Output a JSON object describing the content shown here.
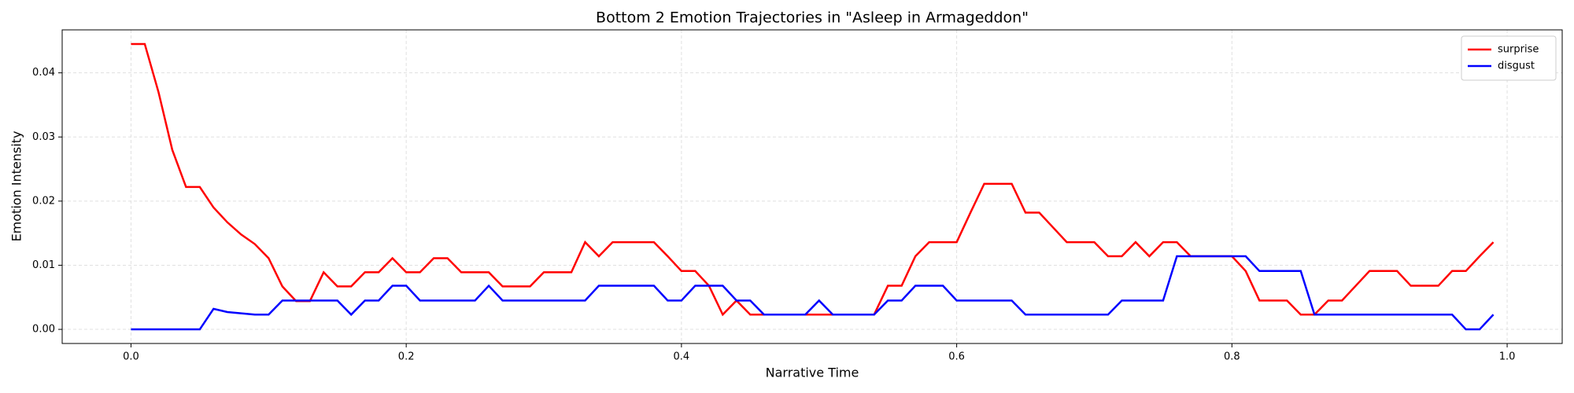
{
  "chart_data": {
    "type": "line",
    "title": "Bottom 2 Emotion Trajectories in \"Asleep in Armageddon\"",
    "x_label": "Narrative Time",
    "y_label": "Emotion Intensity",
    "x": [
      0,
      0.01,
      0.02,
      0.03,
      0.04,
      0.05,
      0.06,
      0.07,
      0.08,
      0.09,
      0.1,
      0.11,
      0.12,
      0.13,
      0.14,
      0.15,
      0.16,
      0.17,
      0.18,
      0.19,
      0.2,
      0.21,
      0.22,
      0.23,
      0.24,
      0.25,
      0.26,
      0.27,
      0.28,
      0.29,
      0.3,
      0.31,
      0.32,
      0.33,
      0.34,
      0.35,
      0.36,
      0.37,
      0.38,
      0.39,
      0.4,
      0.41,
      0.42,
      0.43,
      0.44,
      0.45,
      0.46,
      0.47,
      0.48,
      0.49,
      0.5,
      0.51,
      0.52,
      0.53,
      0.54,
      0.55,
      0.56,
      0.57,
      0.58,
      0.59,
      0.6,
      0.61,
      0.62,
      0.63,
      0.64,
      0.65,
      0.66,
      0.67,
      0.68,
      0.69,
      0.7,
      0.71,
      0.72,
      0.73,
      0.74,
      0.75,
      0.76,
      0.77,
      0.78,
      0.79,
      0.8,
      0.81,
      0.82,
      0.83,
      0.84,
      0.85,
      0.86,
      0.87,
      0.88,
      0.89,
      0.9,
      0.91,
      0.92,
      0.93,
      0.94,
      0.95,
      0.96,
      0.97,
      0.98,
      0.99
    ],
    "series": [
      {
        "name": "surprise",
        "color": "#ff0000",
        "values": [
          0.0445,
          0.0445,
          0.037,
          0.028,
          0.0222,
          0.0222,
          0.019,
          0.0167,
          0.0148,
          0.0133,
          0.0111,
          0.0067,
          0.0044,
          0.0044,
          0.0089,
          0.0067,
          0.0067,
          0.0089,
          0.0089,
          0.0111,
          0.0089,
          0.0089,
          0.0111,
          0.0111,
          0.0089,
          0.0089,
          0.0089,
          0.0067,
          0.0067,
          0.0067,
          0.0089,
          0.0089,
          0.0089,
          0.0136,
          0.0114,
          0.0136,
          0.0136,
          0.0136,
          0.0136,
          0.0114,
          0.0091,
          0.0091,
          0.0068,
          0.0023,
          0.0045,
          0.0023,
          0.0023,
          0.0023,
          0.0023,
          0.0023,
          0.0023,
          0.0023,
          0.0023,
          0.0023,
          0.0023,
          0.0068,
          0.0068,
          0.0114,
          0.0136,
          0.0136,
          0.0136,
          0.0182,
          0.0227,
          0.0227,
          0.0227,
          0.0182,
          0.0182,
          0.0159,
          0.0136,
          0.0136,
          0.0136,
          0.0114,
          0.0114,
          0.0136,
          0.0114,
          0.0136,
          0.0136,
          0.0114,
          0.0114,
          0.0114,
          0.0114,
          0.0091,
          0.0045,
          0.0045,
          0.0045,
          0.0023,
          0.0023,
          0.0045,
          0.0045,
          0.0068,
          0.0091,
          0.0091,
          0.0091,
          0.0068,
          0.0068,
          0.0068,
          0.0091,
          0.0091,
          0.0114,
          0.0136
        ]
      },
      {
        "name": "disgust",
        "color": "#0000ff",
        "values": [
          0,
          0,
          0,
          0,
          0,
          0,
          0.0032,
          0.0027,
          0.0025,
          0.0023,
          0.0023,
          0.0045,
          0.0045,
          0.0045,
          0.0045,
          0.0045,
          0.0023,
          0.0045,
          0.0045,
          0.0068,
          0.0068,
          0.0045,
          0.0045,
          0.0045,
          0.0045,
          0.0045,
          0.0068,
          0.0045,
          0.0045,
          0.0045,
          0.0045,
          0.0045,
          0.0045,
          0.0045,
          0.0068,
          0.0068,
          0.0068,
          0.0068,
          0.0068,
          0.0045,
          0.0045,
          0.0068,
          0.0068,
          0.0068,
          0.0045,
          0.0045,
          0.0023,
          0.0023,
          0.0023,
          0.0023,
          0.0045,
          0.0023,
          0.0023,
          0.0023,
          0.0023,
          0.0045,
          0.0045,
          0.0068,
          0.0068,
          0.0068,
          0.0045,
          0.0045,
          0.0045,
          0.0045,
          0.0045,
          0.0023,
          0.0023,
          0.0023,
          0.0023,
          0.0023,
          0.0023,
          0.0023,
          0.0045,
          0.0045,
          0.0045,
          0.0045,
          0.0114,
          0.0114,
          0.0114,
          0.0114,
          0.0114,
          0.0114,
          0.0091,
          0.0091,
          0.0091,
          0.0091,
          0.0023,
          0.0023,
          0.0023,
          0.0023,
          0.0023,
          0.0023,
          0.0023,
          0.0023,
          0.0023,
          0.0023,
          0.0023,
          0,
          0,
          0.0023
        ]
      }
    ],
    "xlim": [
      -0.05,
      1.04
    ],
    "ylim": [
      -0.0022,
      0.0467
    ],
    "xticks": [
      {
        "value": 0,
        "label": "0.0"
      },
      0.2,
      0.4,
      0.6,
      0.8,
      {
        "value": 1,
        "label": "1.0"
      }
    ],
    "yticks": [
      {
        "value": 0,
        "label": "0.00"
      },
      0.01,
      0.02,
      0.03,
      0.04
    ],
    "grid": true,
    "legend": "upper right"
  }
}
